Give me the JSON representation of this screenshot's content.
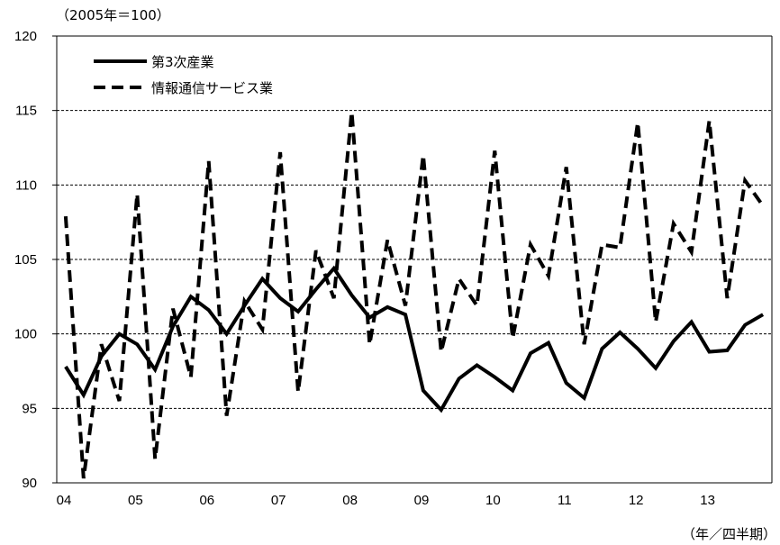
{
  "chart_data": {
    "type": "line",
    "ylabel": "（2005年＝100）",
    "xlabel": "（年／四半期）",
    "ylim": [
      90,
      120
    ],
    "yticks": [
      90,
      95,
      100,
      105,
      110,
      115,
      120
    ],
    "grid": true,
    "legend_position": "top-left",
    "x_category_labels": [
      "04",
      "05",
      "06",
      "07",
      "08",
      "09",
      "10",
      "11",
      "12",
      "13"
    ],
    "quarters_per_year": 4,
    "series": [
      {
        "name": "第3次産業",
        "style": "solid",
        "color": "#000000",
        "values": [
          97.8,
          95.9,
          98.5,
          100.0,
          99.3,
          97.6,
          100.5,
          102.5,
          101.6,
          100.0,
          101.9,
          103.7,
          102.4,
          101.5,
          103.0,
          104.4,
          102.6,
          101.1,
          101.8,
          101.3,
          96.2,
          94.9,
          97.0,
          97.9,
          97.1,
          96.2,
          98.7,
          99.4,
          96.7,
          95.7,
          99.0,
          100.1,
          99.0,
          97.7,
          99.5,
          100.8,
          98.8,
          98.9,
          100.6,
          101.3
        ]
      },
      {
        "name": "情報通信サービス業",
        "style": "dashed",
        "color": "#000000",
        "values": [
          107.9,
          90.3,
          99.3,
          95.5,
          109.4,
          91.6,
          101.7,
          97.1,
          111.6,
          94.5,
          102.2,
          100.3,
          112.2,
          96.1,
          105.6,
          102.4,
          114.9,
          99.3,
          106.3,
          101.9,
          112.0,
          98.8,
          103.7,
          101.9,
          112.3,
          99.7,
          106.0,
          103.9,
          111.2,
          99.3,
          106.0,
          105.8,
          114.2,
          100.8,
          107.4,
          105.5,
          114.3,
          102.4,
          110.3,
          108.6
        ]
      }
    ]
  }
}
